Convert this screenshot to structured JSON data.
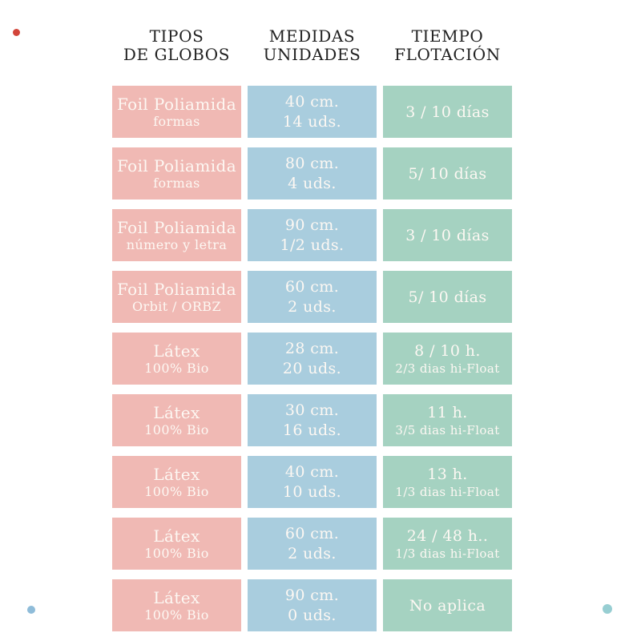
{
  "colors": {
    "page_bg": "#ffffff",
    "header_text": "#222222",
    "cell_text": "#fdf8f3",
    "type_bg": "#f0b9b4",
    "measure_bg": "#a9cdde",
    "float_bg": "#a5d2c1",
    "dot_red": "#d2453a",
    "dot_blue": "#8fbcd9",
    "dot_teal": "#97ced2"
  },
  "headers": [
    {
      "line1": "TIPOS",
      "line2": "DE GLOBOS"
    },
    {
      "line1": "MEDIDAS",
      "line2": "UNIDADES"
    },
    {
      "line1": "TIEMPO",
      "line2": "FLOTACIÓN"
    }
  ],
  "rows": [
    {
      "type_l1": "Foil Poliamida",
      "type_l2": "formas",
      "measure_l1": "40 cm.",
      "measure_l2": "14 uds.",
      "float_l1": "3 / 10 días",
      "float_l2": ""
    },
    {
      "type_l1": "Foil Poliamida",
      "type_l2": "formas",
      "measure_l1": "80 cm.",
      "measure_l2": "4 uds.",
      "float_l1": "5/ 10 días",
      "float_l2": ""
    },
    {
      "type_l1": "Foil Poliamida",
      "type_l2": "número y letra",
      "measure_l1": "90 cm.",
      "measure_l2": "1/2 uds.",
      "float_l1": "3 / 10 días",
      "float_l2": ""
    },
    {
      "type_l1": "Foil Poliamida",
      "type_l2": "Orbit / ORBZ",
      "measure_l1": "60 cm.",
      "measure_l2": "2 uds.",
      "float_l1": "5/ 10 días",
      "float_l2": ""
    },
    {
      "type_l1": "Látex",
      "type_l2": "100% Bio",
      "measure_l1": "28 cm.",
      "measure_l2": "20 uds.",
      "float_l1": "8 / 10 h.",
      "float_l2": "2/3 dias hi-Float"
    },
    {
      "type_l1": "Látex",
      "type_l2": "100% Bio",
      "measure_l1": "30 cm.",
      "measure_l2": "16 uds.",
      "float_l1": "11 h.",
      "float_l2": "3/5 dias hi-Float"
    },
    {
      "type_l1": "Látex",
      "type_l2": "100% Bio",
      "measure_l1": "40 cm.",
      "measure_l2": "10 uds.",
      "float_l1": "13 h.",
      "float_l2": "1/3 dias hi-Float"
    },
    {
      "type_l1": "Látex",
      "type_l2": "100% Bio",
      "measure_l1": "60 cm.",
      "measure_l2": "2 uds.",
      "float_l1": "24 / 48 h..",
      "float_l2": "1/3 dias hi-Float"
    },
    {
      "type_l1": "Látex",
      "type_l2": "100% Bio",
      "measure_l1": "90 cm.",
      "measure_l2": "0 uds.",
      "float_l1": "No aplica",
      "float_l2": ""
    }
  ],
  "chart_data": {
    "type": "table",
    "columns": [
      "TIPOS DE GLOBOS",
      "MEDIDAS UNIDADES",
      "TIEMPO FLOTACIÓN"
    ],
    "rows": [
      [
        "Foil Poliamida formas",
        "40 cm. 14 uds.",
        "3 / 10 días"
      ],
      [
        "Foil Poliamida formas",
        "80 cm. 4 uds.",
        "5/ 10 días"
      ],
      [
        "Foil Poliamida número y letra",
        "90 cm. 1/2 uds.",
        "3 / 10 días"
      ],
      [
        "Foil Poliamida Orbit / ORBZ",
        "60 cm. 2 uds.",
        "5/ 10 días"
      ],
      [
        "Látex 100% Bio",
        "28 cm. 20 uds.",
        "8 / 10 h. 2/3 dias hi-Float"
      ],
      [
        "Látex 100% Bio",
        "30 cm. 16 uds.",
        "11 h. 3/5 dias hi-Float"
      ],
      [
        "Látex 100% Bio",
        "40 cm. 10 uds.",
        "13 h. 1/3 dias hi-Float"
      ],
      [
        "Látex 100% Bio",
        "60 cm. 2 uds.",
        "24 / 48 h.. 1/3 dias hi-Float"
      ],
      [
        "Látex 100% Bio",
        "90 cm. 0 uds.",
        "No aplica"
      ]
    ]
  }
}
